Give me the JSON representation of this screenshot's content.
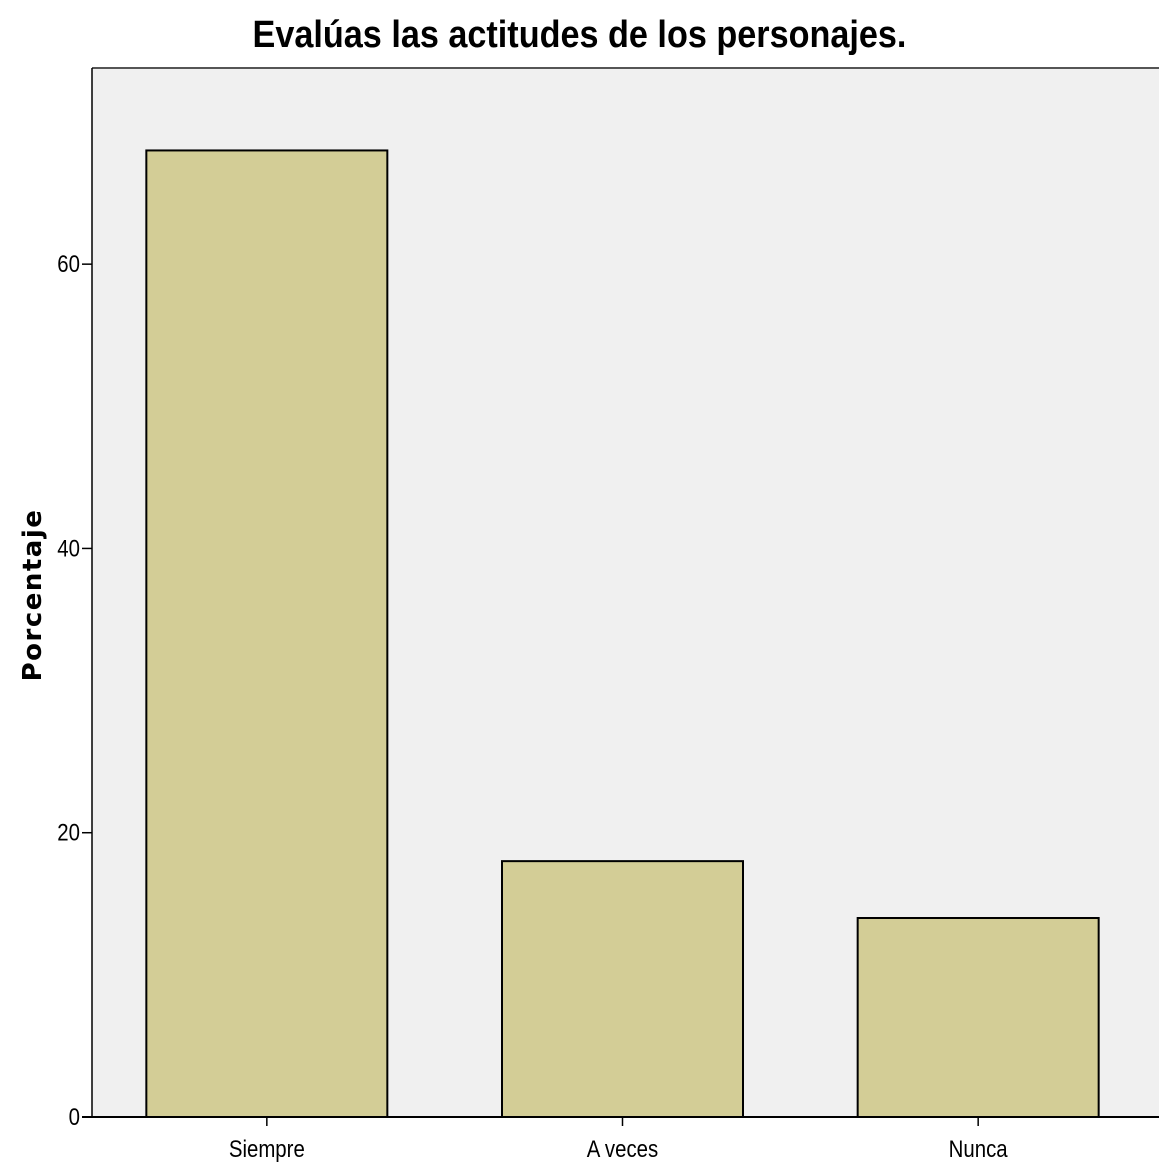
{
  "chart_data": {
    "type": "bar",
    "title": "Evalúas las actitudes de los personajes.",
    "xlabel": "",
    "ylabel": "Porcentaje",
    "categories": [
      "Siempre",
      "A veces",
      "Nunca"
    ],
    "values": [
      68.0,
      18.0,
      14.0
    ],
    "yticks": [
      0,
      20,
      40,
      60
    ],
    "ylim": [
      0,
      73.8
    ],
    "grid": false,
    "legend": "none",
    "colors": {
      "bar_fill": "#d3cd96",
      "bar_stroke": "#000000",
      "plot_background": "#f0f0f0",
      "page_background": "#ffffff"
    }
  }
}
